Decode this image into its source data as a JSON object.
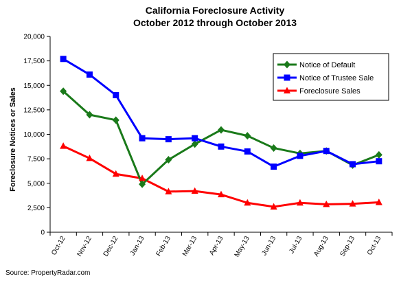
{
  "chart_data": {
    "type": "line",
    "title": "California Foreclosure Activity",
    "subtitle": "October 2012 through October 2013",
    "xlabel": "",
    "ylabel": "Foreclosure Notices or Sales",
    "ylim": [
      0,
      20000
    ],
    "yticks": [
      "0",
      "2,500",
      "5,000",
      "7,500",
      "10,000",
      "12,500",
      "15,000",
      "17,500",
      "20,000"
    ],
    "ytick_values": [
      0,
      2500,
      5000,
      7500,
      10000,
      12500,
      15000,
      17500,
      20000
    ],
    "categories": [
      "Oct-12",
      "Nov-12",
      "Dec-12",
      "Jan-13",
      "Feb-13",
      "Mar-13",
      "Apr-13",
      "May-13",
      "Jun-13",
      "Jul-13",
      "Aug-13",
      "Sep-13",
      "Oct-13"
    ],
    "grid": false,
    "legend_position": "top-right",
    "series": [
      {
        "name": "Notice of Default",
        "color": "#1a7a1a",
        "marker": "diamond",
        "values": [
          14400,
          12000,
          11450,
          4900,
          7400,
          9000,
          10450,
          9850,
          8600,
          8050,
          8300,
          6850,
          7900
        ]
      },
      {
        "name": "Notice of Trustee Sale",
        "color": "#0000ff",
        "marker": "square",
        "values": [
          17700,
          16100,
          14000,
          9600,
          9500,
          9600,
          8750,
          8250,
          6700,
          7800,
          8300,
          6950,
          7250
        ]
      },
      {
        "name": "Foreclosure Sales",
        "color": "#ff0000",
        "marker": "triangle",
        "values": [
          8800,
          7550,
          5950,
          5500,
          4150,
          4200,
          3850,
          3000,
          2600,
          3000,
          2850,
          2900,
          3050
        ]
      }
    ]
  },
  "source": "Source: PropertyRadar.com"
}
